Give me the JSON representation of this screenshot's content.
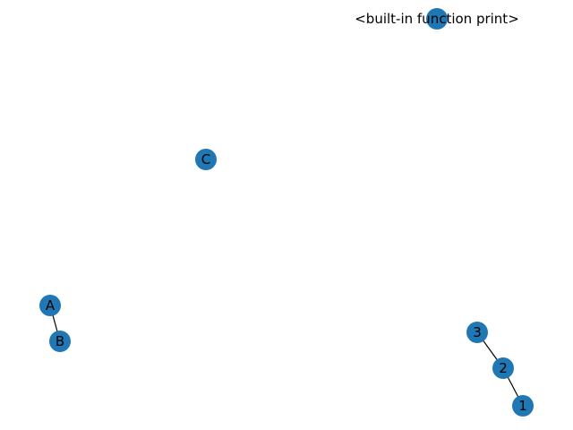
{
  "graph": {
    "node_color": "#1f77b4",
    "edge_color": "#000000",
    "nodes": [
      {
        "id": "print",
        "label": "<built-in function print>"
      },
      {
        "id": "C",
        "label": "C"
      },
      {
        "id": "A",
        "label": "A"
      },
      {
        "id": "B",
        "label": "B"
      },
      {
        "id": "3",
        "label": "3"
      },
      {
        "id": "2",
        "label": "2"
      },
      {
        "id": "1",
        "label": "1"
      }
    ],
    "edges": [
      {
        "source": "A",
        "target": "B"
      },
      {
        "source": "3",
        "target": "2"
      },
      {
        "source": "2",
        "target": "1"
      }
    ]
  }
}
